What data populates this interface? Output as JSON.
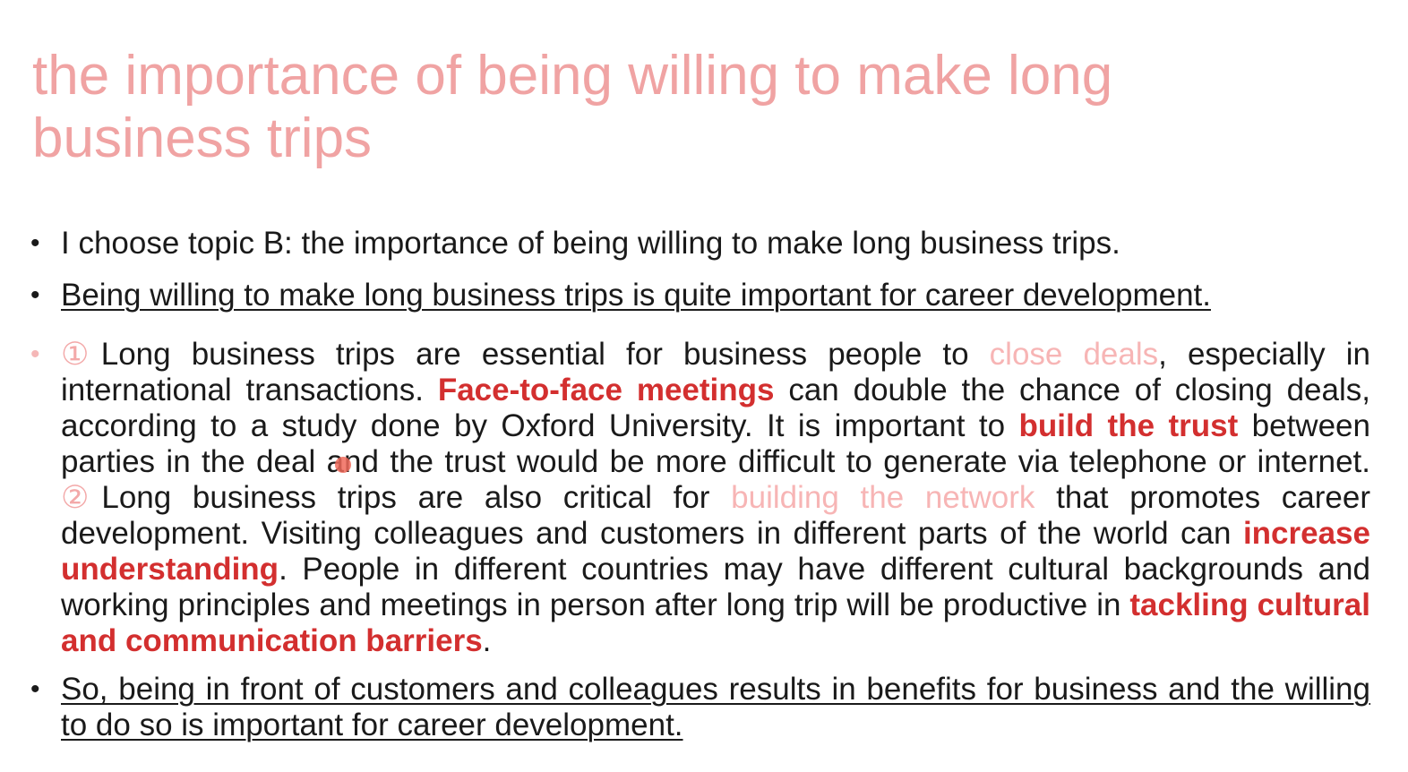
{
  "slide": {
    "title": "the importance of being willing to make long business trips",
    "bullet1": "I choose topic B: the importance of being willing to make long business trips.",
    "bullet2": "Being willing to make long business trips is quite important for career development.",
    "bullet3": {
      "marker1": "①",
      "t1": "Long business trips are essential for business people to ",
      "h1": "close deals",
      "t2": ", especially in international transactions. ",
      "h2": "Face-to-face meetings",
      "t3": " can double the chance of closing deals, according to a study done by Oxford University. It is important to ",
      "h3": "build the trust",
      "t4": " between parties in the deal and the trust would be more difficult to generate via telephone or internet. ",
      "marker2": "②",
      "t5": "Long business trips are also critical for ",
      "h4": "building the network",
      "t6": " that promotes career development. Visiting colleagues and customers in different parts of the world can ",
      "h5": "increase understanding",
      "t7": ". People in different countries may have different cultural backgrounds and working principles and meetings in person after long trip will be productive in ",
      "h6": "tackling cultural and communication barriers",
      "t8": "."
    },
    "bullet4": "So, being in front of customers and colleagues results in benefits for business and the willing to do so is important for career development.",
    "colors": {
      "title": "#f0a3a3",
      "highlight_red": "#d32f2f",
      "highlight_pink": "#f7b5b5"
    }
  }
}
